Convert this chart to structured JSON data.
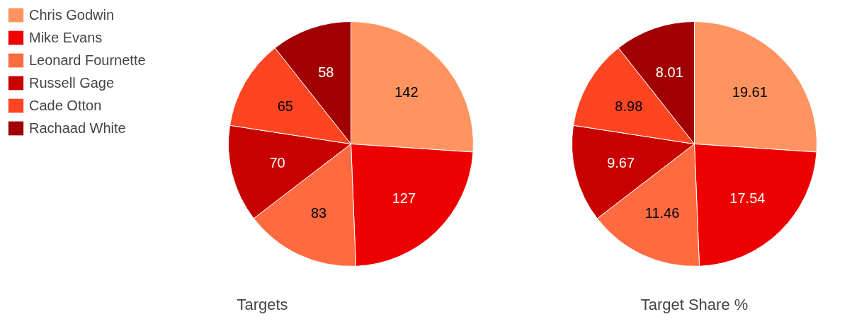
{
  "chart_data": [
    {
      "type": "pie",
      "title": "Targets",
      "categories": [
        "Chris Godwin",
        "Mike Evans",
        "Leonard Fournette",
        "Russell Gage",
        "Cade Otton",
        "Rachaad White"
      ],
      "values": [
        142,
        127,
        83,
        70,
        65,
        58
      ],
      "colors": [
        "#ff9460",
        "#ee0000",
        "#ff6a40",
        "#c80000",
        "#ff4422",
        "#a00000"
      ],
      "data_labels": true,
      "legend": "left"
    },
    {
      "type": "pie",
      "title": "Target Share %",
      "values": [
        19.61,
        17.54,
        11.46,
        9.67,
        8.98,
        8.01
      ],
      "colors": [
        "#ff9460",
        "#ee0000",
        "#ff6a40",
        "#c80000",
        "#ff4422",
        "#a00000"
      ],
      "data_labels": true
    }
  ]
}
